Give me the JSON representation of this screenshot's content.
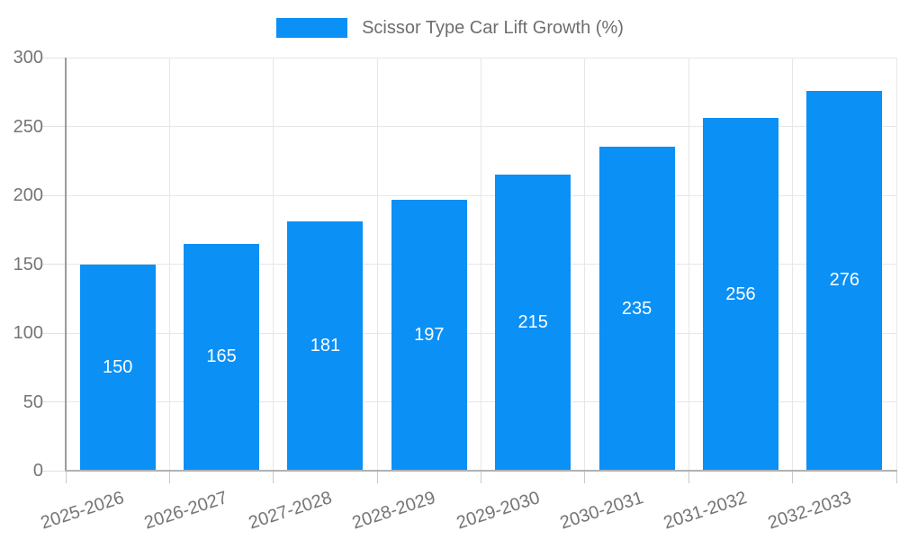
{
  "legend": {
    "label": "Scissor Type Car Lift Growth (%)"
  },
  "chart_data": {
    "type": "bar",
    "title": "Scissor Type Car Lift Growth (%)",
    "categories": [
      "2025-2026",
      "2026-2027",
      "2027-2028",
      "2028-2029",
      "2029-2030",
      "2030-2031",
      "2031-2032",
      "2032-2033"
    ],
    "values": [
      150,
      165,
      181,
      197,
      215,
      235,
      256,
      276
    ],
    "xlabel": "",
    "ylabel": "",
    "ylim": [
      0,
      300
    ],
    "yticks": [
      0,
      50,
      100,
      150,
      200,
      250,
      300
    ],
    "grid": true,
    "legend_position": "top-center",
    "bar_color": "#0b90f6",
    "value_label_color": "#ffffff",
    "axis_text_color": "#757575"
  }
}
